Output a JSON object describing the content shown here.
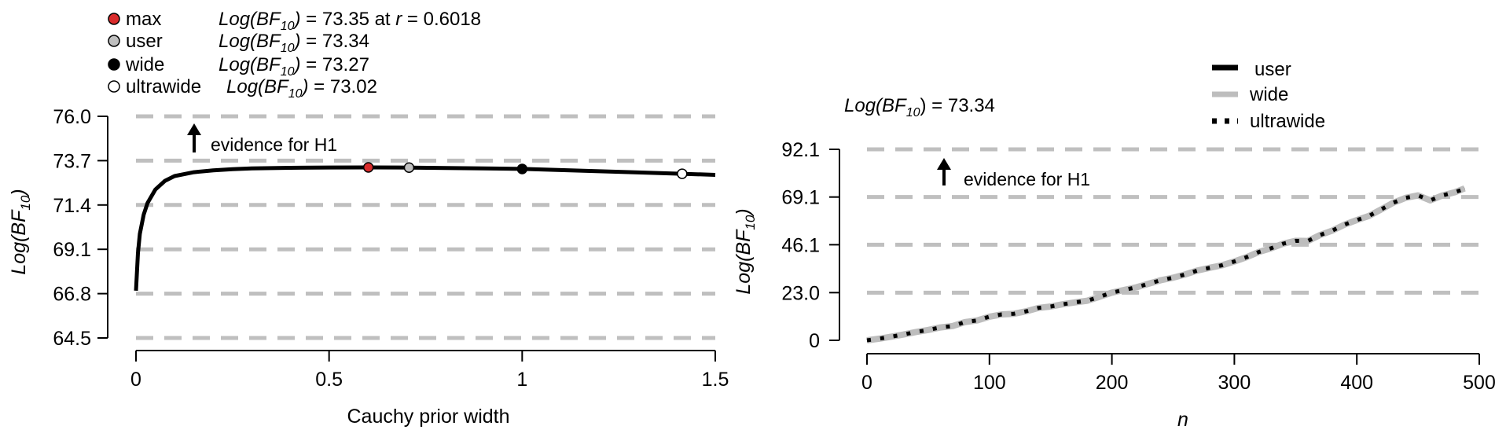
{
  "colors": {
    "curve": "#000000",
    "reference_line": "#bfbfbf",
    "wide_line": "#bdbdbd",
    "max_point": "#d92b2b",
    "user_point": "#c0c0c0",
    "wide_point": "#000000",
    "ultrawide_point": "#ffffff"
  },
  "chart_data": [
    {
      "type": "line",
      "xlabel": "Cauchy prior width",
      "ylabel": {
        "prefix": "Log(BF",
        "sub": "10",
        "suffix": ")"
      },
      "xlim": [
        0,
        1.5
      ],
      "ylim": [
        64.5,
        76.0
      ],
      "xticks": [
        0,
        0.5,
        1,
        1.5
      ],
      "xtick_labels": [
        "0",
        "0.5",
        "1",
        "1.5"
      ],
      "yticks": [
        64.5,
        66.8,
        69.1,
        71.4,
        73.7,
        76.0
      ],
      "ytick_labels": [
        "64.5",
        "66.8",
        "69.1",
        "71.4",
        "73.7",
        "76.0"
      ],
      "reference_lines": [
        64.5,
        66.8,
        69.1,
        71.4,
        73.7,
        76.0
      ],
      "annotation": {
        "text": "evidence for H1",
        "arrow": "up"
      },
      "series": [
        {
          "x": [
            0.0,
            0.005,
            0.01,
            0.02,
            0.03,
            0.05,
            0.075,
            0.1,
            0.15,
            0.2,
            0.25,
            0.3,
            0.4,
            0.5,
            0.6018,
            0.7071,
            0.8,
            0.9,
            1.0,
            1.1,
            1.2,
            1.3,
            1.4142,
            1.5
          ],
          "y": [
            66.95,
            68.9,
            69.9,
            70.9,
            71.5,
            72.2,
            72.65,
            72.9,
            73.1,
            73.2,
            73.26,
            73.3,
            73.33,
            73.345,
            73.35,
            73.34,
            73.32,
            73.3,
            73.27,
            73.21,
            73.15,
            73.09,
            73.02,
            72.96
          ]
        }
      ],
      "points": [
        {
          "name": "max",
          "x": 0.6018,
          "y": 73.35,
          "fill": "#d92b2b"
        },
        {
          "name": "user",
          "x": 0.7071,
          "y": 73.34,
          "fill": "#c0c0c0"
        },
        {
          "name": "wide",
          "x": 1.0,
          "y": 73.27,
          "fill": "#000000"
        },
        {
          "name": "ultrawide",
          "x": 1.4142,
          "y": 73.02,
          "fill": "#ffffff"
        }
      ],
      "legend": [
        {
          "label": "max",
          "marker_fill": "#d92b2b",
          "bf_prefix": "Log(BF",
          "bf_sub": "10",
          "bf_value": ") = 73.35 at ",
          "bf_r": "r",
          "bf_r_value": " = 0.6018"
        },
        {
          "label": "user",
          "marker_fill": "#c0c0c0",
          "bf_prefix": "Log(BF",
          "bf_sub": "10",
          "bf_value": ") = 73.34"
        },
        {
          "label": "wide",
          "marker_fill": "#000000",
          "bf_prefix": "Log(BF",
          "bf_sub": "10",
          "bf_value": ") = 73.27"
        },
        {
          "label": "ultrawide",
          "marker_fill": "#ffffff",
          "bf_prefix": "Log(BF",
          "bf_sub": "10",
          "bf_value": ") = 73.02"
        }
      ]
    },
    {
      "type": "line",
      "xlabel": "n",
      "ylabel": {
        "prefix": "Log(BF",
        "sub": "10",
        "suffix": ")"
      },
      "xlim": [
        0,
        500
      ],
      "ylim": [
        0,
        92.1
      ],
      "xticks": [
        0,
        100,
        200,
        300,
        400,
        500
      ],
      "xtick_labels": [
        "0",
        "100",
        "200",
        "300",
        "400",
        "500"
      ],
      "yticks": [
        0,
        23.0,
        46.1,
        69.1,
        92.1
      ],
      "ytick_labels": [
        "0",
        "23.0",
        "46.1",
        "69.1",
        "92.1"
      ],
      "reference_lines": [
        23.0,
        46.1,
        69.1,
        92.1
      ],
      "annotation": {
        "text": "evidence for H1",
        "arrow": "up"
      },
      "bf_label": {
        "prefix": "Log(BF",
        "sub": "10",
        "suffix": ") = 73.34"
      },
      "legend": [
        {
          "label": "user",
          "style": "solid-black"
        },
        {
          "label": "wide",
          "style": "solid-grey"
        },
        {
          "label": "ultrawide",
          "style": "dotted-black"
        }
      ],
      "x": [
        0,
        10,
        20,
        30,
        40,
        50,
        60,
        70,
        80,
        90,
        100,
        110,
        120,
        130,
        140,
        150,
        160,
        170,
        180,
        190,
        200,
        210,
        220,
        230,
        240,
        250,
        260,
        270,
        280,
        290,
        300,
        310,
        320,
        330,
        340,
        350,
        360,
        370,
        380,
        390,
        400,
        410,
        420,
        430,
        440,
        450,
        460,
        470,
        480,
        488
      ],
      "series": [
        {
          "name": "user",
          "values": [
            0,
            0.8,
            1.8,
            2.8,
            4.0,
            5.0,
            6.2,
            6.9,
            8.8,
            9.6,
            11.4,
            12.5,
            12.8,
            14.0,
            15.6,
            16.3,
            17.4,
            18.3,
            19.1,
            21.0,
            23.0,
            24.3,
            25.6,
            27.3,
            29.0,
            30.2,
            31.8,
            33.7,
            35.0,
            36.2,
            38.0,
            40.1,
            42.6,
            44.4,
            46.6,
            48.0,
            47.9,
            50.8,
            52.9,
            55.8,
            58.0,
            60.0,
            63.2,
            66.4,
            68.7,
            69.9,
            67.5,
            69.9,
            71.4,
            73.34
          ]
        },
        {
          "name": "wide",
          "values": [
            0,
            0.8,
            1.8,
            2.8,
            4.0,
            5.0,
            6.2,
            6.9,
            8.8,
            9.6,
            11.4,
            12.5,
            12.8,
            14.0,
            15.6,
            16.3,
            17.4,
            18.3,
            19.1,
            21.0,
            23.0,
            24.3,
            25.6,
            27.3,
            29.0,
            30.2,
            31.8,
            33.7,
            35.0,
            36.2,
            38.0,
            40.1,
            42.6,
            44.4,
            46.6,
            48.0,
            47.9,
            50.8,
            52.9,
            55.8,
            58.0,
            60.0,
            63.2,
            66.4,
            68.7,
            69.9,
            67.5,
            69.9,
            71.4,
            73.27
          ]
        },
        {
          "name": "ultrawide",
          "values": [
            0,
            0.8,
            1.8,
            2.8,
            4.0,
            5.0,
            6.2,
            6.9,
            8.8,
            9.6,
            11.4,
            12.5,
            12.8,
            14.0,
            15.6,
            16.3,
            17.4,
            18.3,
            19.1,
            21.0,
            23.0,
            24.3,
            25.6,
            27.3,
            29.0,
            30.2,
            31.8,
            33.7,
            35.0,
            36.2,
            38.0,
            40.1,
            42.6,
            44.4,
            46.6,
            48.0,
            47.9,
            50.8,
            52.9,
            55.8,
            58.0,
            60.0,
            63.2,
            66.4,
            68.7,
            69.9,
            67.5,
            69.9,
            71.4,
            73.02
          ]
        }
      ]
    }
  ]
}
